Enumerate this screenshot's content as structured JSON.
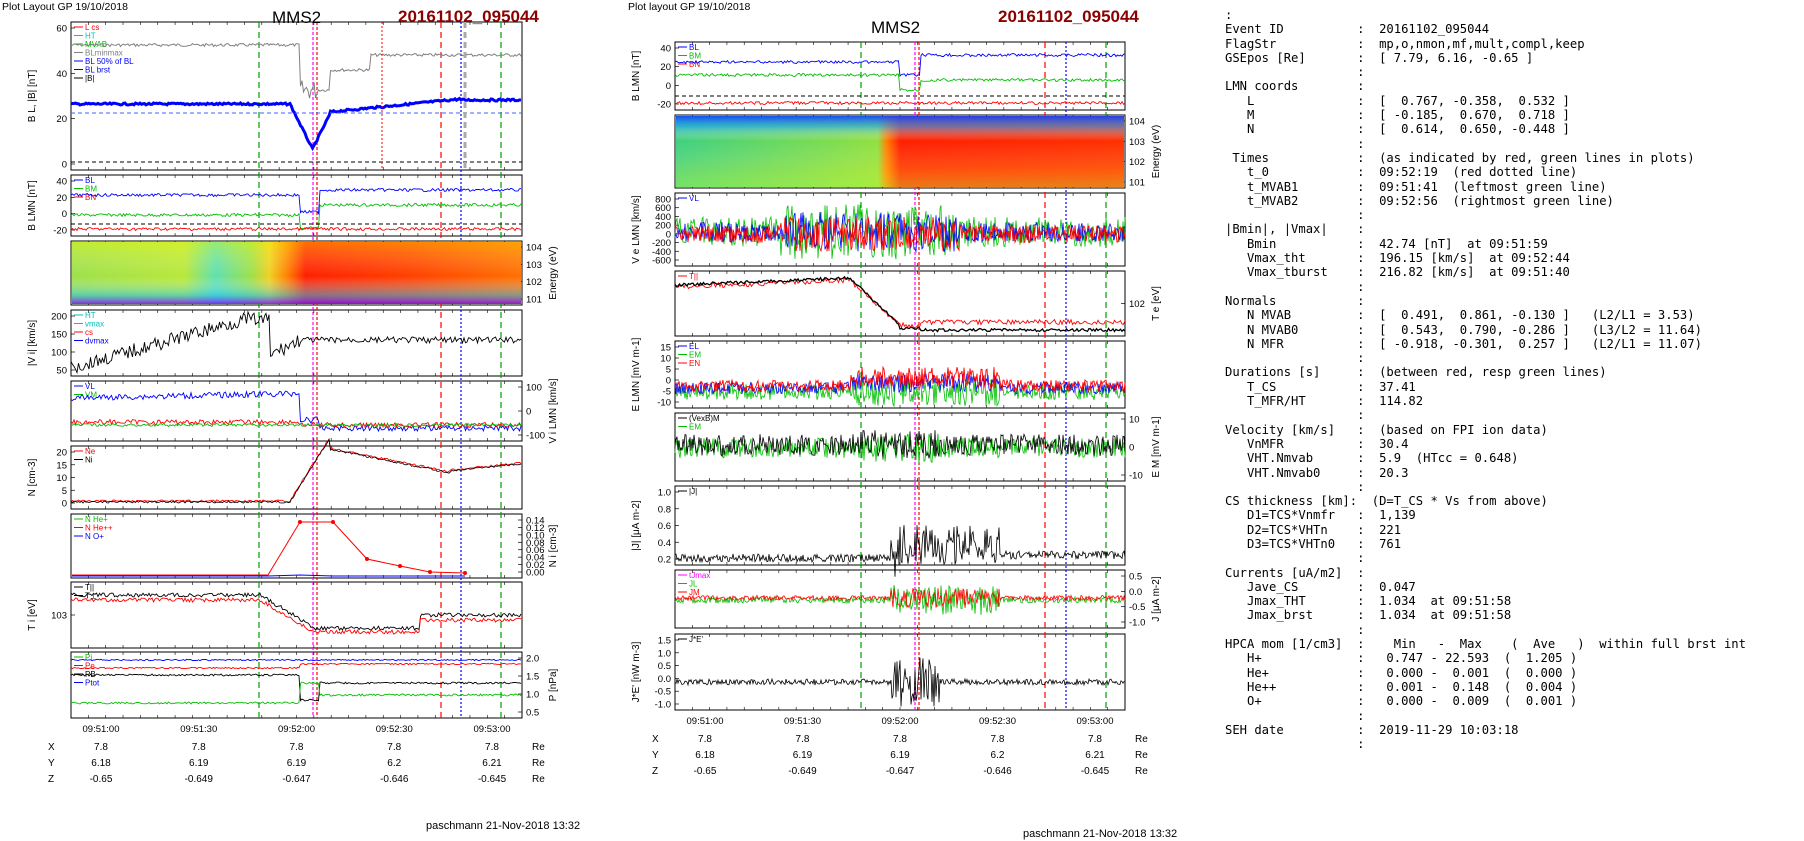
{
  "left": {
    "plot_label": "Plot Layout GP 19/10/2018",
    "spacecraft": "MMS2",
    "event": "20161102_095044",
    "footer": "paschmann 21-Nov-2018 13:32",
    "panels": [
      {
        "ylabel": "B_L, |B| [nT]",
        "ticks": [
          "60",
          "40",
          "20",
          "0"
        ],
        "legend": [
          "L cs",
          "HT",
          "MVAB",
          "BLminmax",
          "BL 50% of BL",
          "BL brst",
          "|B|"
        ]
      },
      {
        "ylabel": "B_LMN [nT]",
        "ticks": [
          "40",
          "20",
          "0",
          "-20"
        ],
        "legend": [
          "B_L",
          "B_M",
          "B_N"
        ]
      },
      {
        "ylabel": "Energy (eV)",
        "ticks": [
          "10^4",
          "10^3",
          "10^2",
          "10^1"
        ],
        "legend": []
      },
      {
        "ylabel": "|V_i| [km/s]",
        "ticks": [
          "200",
          "150",
          "100",
          "50"
        ],
        "legend": [
          "HT",
          "vmax",
          "cs",
          "dvmax"
        ]
      },
      {
        "ylabel": "V_i LMN [km/s]",
        "ticks": [
          "100",
          "0",
          "-100"
        ],
        "legend": [
          "V_L",
          "V_M"
        ]
      },
      {
        "ylabel": "N [cm^-3]",
        "ticks": [
          "20",
          "15",
          "10",
          "5",
          "0"
        ],
        "legend": [
          "Ne",
          "Ni"
        ]
      },
      {
        "ylabel": "N_i [cm^-3]",
        "ticks": [
          "0.14",
          "0.12",
          "0.10",
          "0.08",
          "0.06",
          "0.04",
          "0.02",
          "0.00"
        ],
        "legend": [
          "N He+",
          "N He++",
          "N O+"
        ]
      },
      {
        "ylabel": "T_i [eV]",
        "ticks": [
          "10^3"
        ],
        "legend": [
          "T_||",
          "T_⊥"
        ]
      },
      {
        "ylabel": "P [nPa]",
        "ticks": [
          "2.0",
          "1.5",
          "1.0",
          "0.5"
        ],
        "legend": [
          "P_i",
          "P_e",
          "P_B",
          "P_tot"
        ]
      }
    ],
    "time_ticks": [
      "09:51:00",
      "09:51:30",
      "09:52:00",
      "09:52:30",
      "09:53:00"
    ],
    "coords": {
      "X": [
        "7.8",
        "7.8",
        "7.8",
        "7.8",
        "7.8"
      ],
      "Y": [
        "6.18",
        "6.19",
        "6.19",
        "6.2",
        "6.21"
      ],
      "Z": [
        "-0.65",
        "-0.649",
        "-0.647",
        "-0.646",
        "-0.645"
      ],
      "unit": "Re"
    }
  },
  "middle": {
    "plot_label": "Plot layout GP 19/10/2018",
    "spacecraft": "MMS2",
    "event": "20161102_095044",
    "footer": "paschmann 21-Nov-2018 13:32",
    "panels": [
      {
        "ylabel": "B_LMN [nT]",
        "ticks": [
          "40",
          "20",
          "0",
          "-20"
        ],
        "legend": [
          "B_L",
          "B_M",
          "B_N"
        ]
      },
      {
        "ylabel": "Energy (eV)",
        "ticks": [
          "10^4",
          "10^3",
          "10^2",
          "10^1"
        ],
        "legend": []
      },
      {
        "ylabel": "V_e LMN [km/s]",
        "ticks": [
          "800",
          "600",
          "400",
          "200",
          "0",
          "-200",
          "-400",
          "-600"
        ],
        "legend": [
          "V_L"
        ]
      },
      {
        "ylabel": "T_e [eV]",
        "ticks": [
          "10^2"
        ],
        "legend": [
          "T_||"
        ]
      },
      {
        "ylabel": "E_LMN [mV m^-1]",
        "ticks": [
          "15",
          "10",
          "5",
          "0",
          "-5",
          "-10"
        ],
        "legend": [
          "E_L",
          "E_M",
          "E_N"
        ]
      },
      {
        "ylabel": "E_M [mV m^-1]",
        "ticks": [
          "10",
          "0",
          "-10"
        ],
        "legend": [
          "(VexB)_M",
          "E_M"
        ]
      },
      {
        "ylabel": "|J| [μA m^-2]",
        "ticks": [
          "1.0",
          "0.8",
          "0.6",
          "0.4",
          "0.2"
        ],
        "legend": [
          "|J|"
        ]
      },
      {
        "ylabel": "J [μA m^-2]",
        "ticks": [
          "0.5",
          "0.0",
          "-0.5",
          "-1.0"
        ],
        "legend": [
          "t_Jmax",
          "J_L",
          "J_M"
        ]
      },
      {
        "ylabel": "J*E' [nW m^-3]",
        "ticks": [
          "1.5",
          "1.0",
          "0.5",
          "0.0",
          "-0.5",
          "-1.0"
        ],
        "legend": [
          "J*E'"
        ]
      }
    ],
    "time_ticks": [
      "09:51:00",
      "09:51:30",
      "09:52:00",
      "09:52:30",
      "09:53:00"
    ],
    "coords": {
      "X": [
        "7.8",
        "7.8",
        "7.8",
        "7.8",
        "7.8"
      ],
      "Y": [
        "6.18",
        "6.19",
        "6.19",
        "6.2",
        "6.21"
      ],
      "Z": [
        "-0.65",
        "-0.649",
        "-0.647",
        "-0.646",
        "-0.645"
      ],
      "unit": "Re"
    }
  },
  "info_lines": [
    ":",
    "Event ID          :  20161102_095044",
    "FlagStr           :  mp,o,nmon,mf,mult,compl,keep",
    "GSEpos [Re]       :  [ 7.79, 6.16, -0.65 ]",
    "                  :",
    "LMN coords        :",
    "   L              :  [  0.767, -0.358,  0.532 ]",
    "   M              :  [ -0.185,  0.670,  0.718 ]",
    "   N              :  [  0.614,  0.650, -0.448 ]",
    "                  :",
    " Times            :  (as indicated by red, green lines in plots)",
    "   t_0            :  09:52:19  (red dotted line)",
    "   t_MVAB1        :  09:51:41  (leftmost green line)",
    "   t_MVAB2        :  09:52:56  (rightmost green line)",
    "                  :",
    "|Bmin|, |Vmax|    :",
    "   Bmin           :  42.74 [nT]  at 09:51:59",
    "   Vmax_tht       :  196.15 [km/s]  at 09:52:44",
    "   Vmax_tburst    :  216.82 [km/s]  at 09:51:40",
    "                  :",
    "Normals           :",
    "   N MVAB         :  [  0.491,  0.861, -0.130 ]   (L2/L1 = 3.53)",
    "   N MVAB0        :  [  0.543,  0.790, -0.286 ]   (L3/L2 = 11.64)",
    "   N MFR          :  [ -0.918, -0.301,  0.257 ]   (L2/L1 = 11.07)",
    "                  :",
    "Durations [s]     :  (between red, resp green lines)",
    "   T_CS           :  37.41",
    "   T_MFR/HT       :  114.82",
    "                  :",
    "Velocity [km/s]   :  (based on FPI ion data)",
    "   VnMFR          :  30.4",
    "   VHT.Nmvab      :  5.9  (HTcc = 0.648)",
    "   VHT.Nmvab0     :  20.3",
    "                  :",
    "CS thickness [km]:  (D=T_CS * Vs from above)",
    "   D1=TCS*Vnmfr   :  1,139",
    "   D2=TCS*VHTn    :  221",
    "   D3=TCS*VHTn0   :  761",
    "                  :",
    "Currents [uA/m2]  :",
    "   Jave_CS        :  0.047",
    "   Jmax_THT       :  1.034  at 09:51:58",
    "   Jmax_brst      :  1.034  at 09:51:58",
    "                  :",
    "HPCA mom [1/cm3]  :    Min   -  Max    (  Ave   )  within full brst int",
    "   H+             :   0.747 - 22.593  (  1.205 )",
    "   He+            :   0.000 -  0.001  (  0.000 )",
    "   He++           :   0.001 -  0.148  (  0.004 )",
    "   O+             :   0.000 -  0.009  (  0.001 )",
    "                  :",
    "SEH date          :  2019-11-29 10:03:18",
    "                  :"
  ],
  "colors": {
    "title_red": "#8b0000",
    "blue": "#0000ff",
    "red": "#ff0000",
    "green": "#00c000",
    "black": "#000000",
    "magenta": "#ff00ff",
    "gray": "#808080"
  }
}
